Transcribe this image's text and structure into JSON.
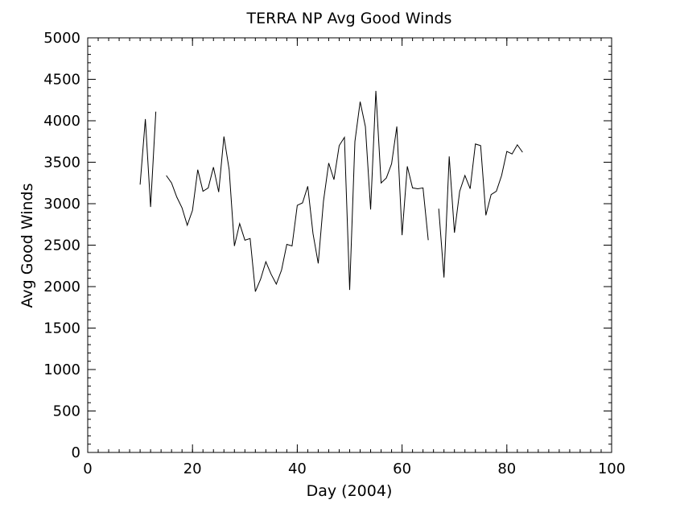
{
  "chart_data": {
    "type": "line",
    "title": "TERRA NP Avg Good Winds",
    "xlabel": "Day (2004)",
    "ylabel": "Avg Good Winds",
    "xlim": [
      0,
      100
    ],
    "ylim": [
      0,
      5000
    ],
    "xticks": [
      0,
      20,
      40,
      60,
      80,
      100
    ],
    "yticks": [
      0,
      500,
      1000,
      1500,
      2000,
      2500,
      3000,
      3500,
      4000,
      4500,
      5000
    ],
    "grid": false,
    "line_color": "#000000",
    "segments": [
      {
        "x": [
          10,
          11,
          12,
          13
        ],
        "y": [
          3230,
          4020,
          2960,
          4110
        ]
      },
      {
        "x": [
          15,
          16,
          17,
          18,
          19,
          20,
          21,
          22,
          23,
          24,
          25,
          26,
          27,
          28,
          29,
          30,
          31,
          32,
          33,
          34,
          35,
          36,
          37,
          38,
          39,
          40,
          41,
          42,
          43,
          44,
          45,
          46,
          47,
          48,
          49,
          50,
          51,
          52,
          53,
          54,
          55,
          56,
          57,
          58,
          59,
          60,
          61,
          62,
          63,
          64,
          65
        ],
        "y": [
          3340,
          3250,
          3080,
          2950,
          2740,
          2920,
          3410,
          3150,
          3190,
          3440,
          3140,
          3810,
          3410,
          2490,
          2760,
          2560,
          2580,
          1940,
          2090,
          2300,
          2150,
          2030,
          2200,
          2510,
          2490,
          2980,
          3010,
          3210,
          2640,
          2280,
          3030,
          3490,
          3290,
          3700,
          3800,
          1960,
          3750,
          4230,
          3930,
          2930,
          4360,
          3250,
          3310,
          3480,
          3930,
          2620,
          3450,
          3190,
          3180,
          3190,
          2560
        ]
      },
      {
        "x": [
          67,
          68,
          69,
          70,
          71,
          72,
          73,
          74,
          75,
          76,
          77,
          78,
          79,
          80,
          81,
          82,
          83
        ],
        "y": [
          2940,
          2110,
          3570,
          2650,
          3150,
          3340,
          3180,
          3720,
          3700,
          2860,
          3110,
          3150,
          3340,
          3630,
          3600,
          3710,
          3620
        ]
      }
    ]
  }
}
